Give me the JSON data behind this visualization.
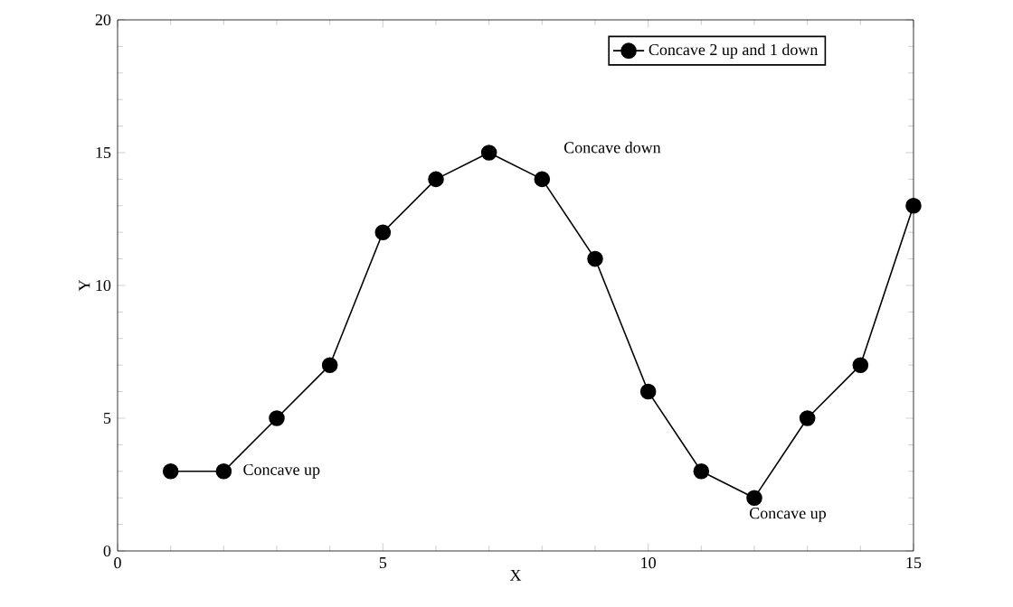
{
  "chart_data": {
    "type": "line",
    "xlabel": "X",
    "ylabel": "Y",
    "x": [
      1,
      2,
      3,
      4,
      5,
      6,
      7,
      8,
      9,
      10,
      11,
      12,
      13,
      14,
      15
    ],
    "series": [
      {
        "name": "Concave 2 up and 1 down",
        "color": "#000000",
        "values": [
          3,
          3,
          5,
          7,
          12,
          14,
          15,
          14,
          11,
          6,
          3,
          2,
          5,
          7,
          13
        ]
      }
    ],
    "xlim": [
      0,
      15
    ],
    "ylim": [
      0,
      20
    ],
    "xticks": [
      0,
      5,
      10,
      15
    ],
    "yticks": [
      0,
      5,
      10,
      15,
      20
    ],
    "annotations": [
      "Concave up",
      "Concave down",
      "Concave up"
    ],
    "legend": "top right",
    "marker": "circle",
    "line_style": "solid",
    "grid": false
  }
}
